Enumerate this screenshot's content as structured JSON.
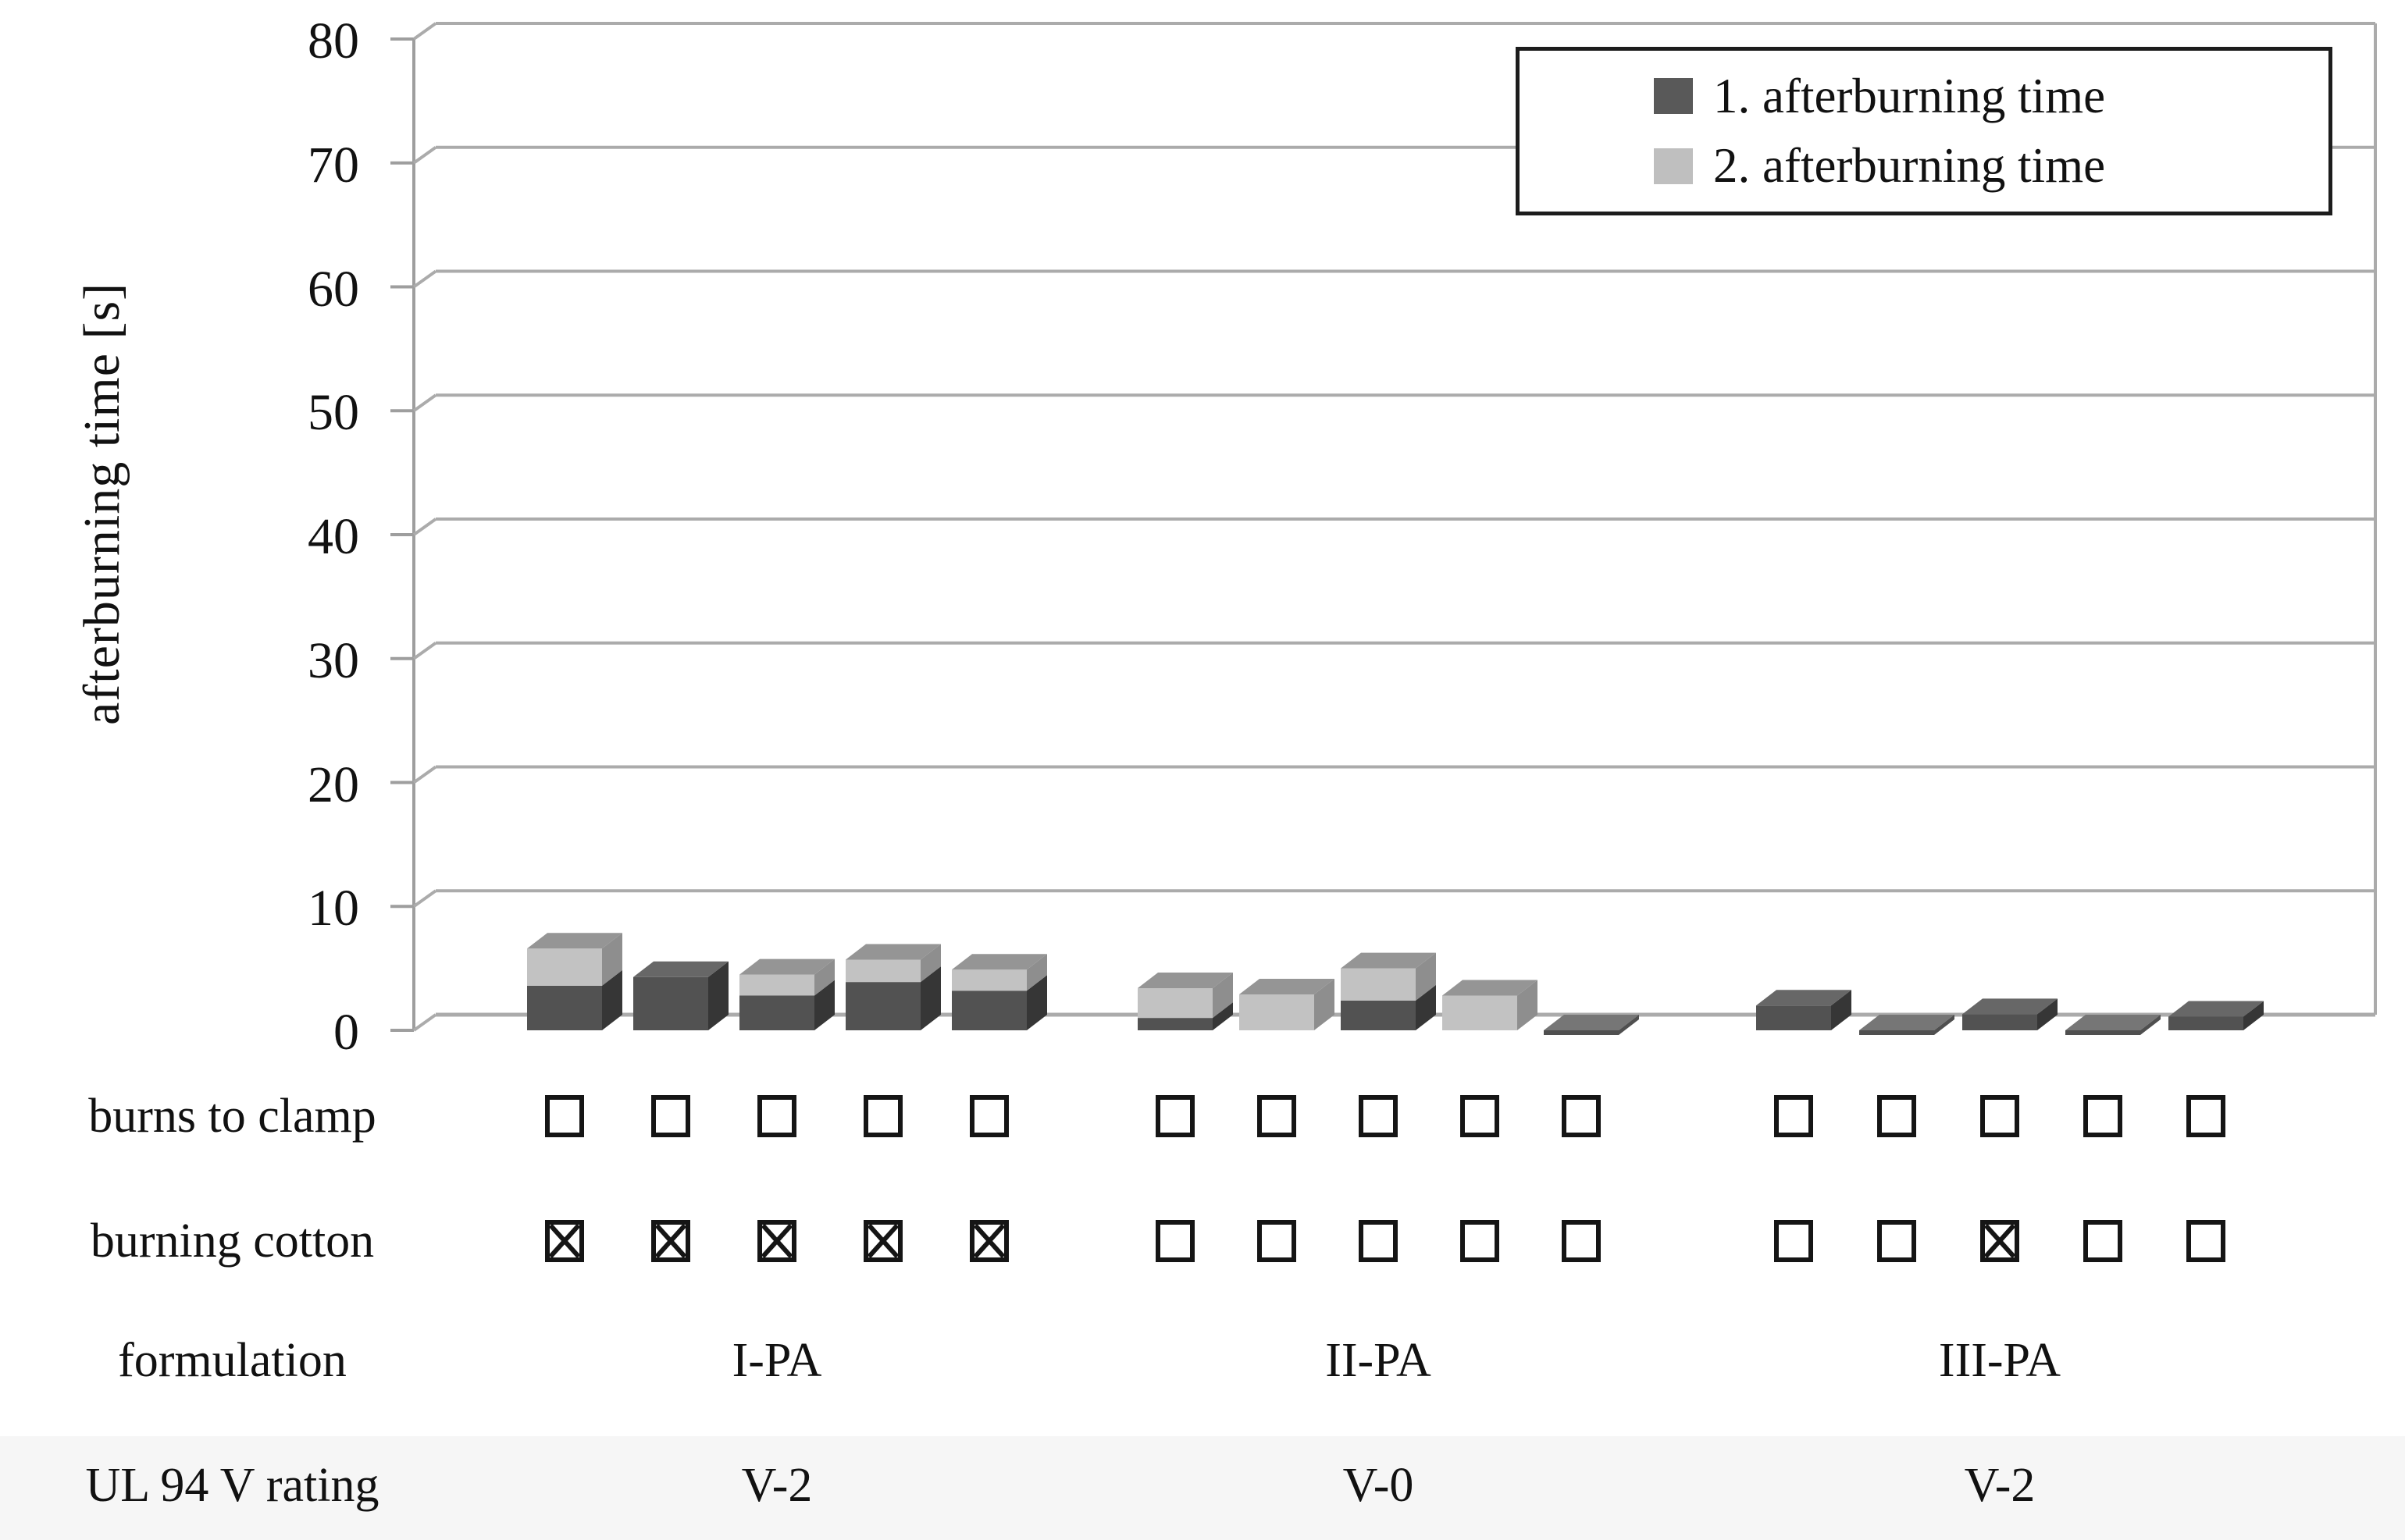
{
  "labels": {
    "burns_to_clamp": "burns to clamp",
    "burning_cotton": "burning cotton",
    "formulation": "formulation",
    "ul94": "UL 94 V rating"
  },
  "colors": {
    "series1_front": "#525252",
    "series1_side": "#363636",
    "series1_top": "#676767",
    "series2_front": "#c2c2c2",
    "series2_side": "#8e8e8e",
    "series2_top": "#959595",
    "zero_bar_top": "#767676",
    "zero_bar_lip": "#4f4f4f",
    "grid": "#ababab",
    "axis": "#9e9e9e",
    "legend_swatch_1": "#595959",
    "legend_swatch_2": "#bfbfbf",
    "checkbox_ink": "#151515"
  },
  "chart_data": {
    "type": "bar",
    "stacked": true,
    "projection": "3d",
    "title": "",
    "ylabel": "afterburning time [s]",
    "xlabel": "",
    "ylim": [
      0,
      80
    ],
    "ytick_step": 10,
    "grid": "horizontal",
    "legend_position": "top-right",
    "groups": [
      "I-PA",
      "II-PA",
      "III-PA"
    ],
    "bars_per_group": 5,
    "series": [
      {
        "name": "1. afterburning time",
        "values": [
          [
            3.6,
            4.3,
            2.8,
            3.9,
            3.2
          ],
          [
            1.0,
            0,
            2.4,
            0,
            0
          ],
          [
            2.0,
            0,
            1.3,
            0,
            1.1
          ]
        ]
      },
      {
        "name": "2. afterburning time",
        "values": [
          [
            3.0,
            0,
            1.7,
            1.8,
            1.7
          ],
          [
            2.4,
            2.9,
            2.6,
            2.8,
            0
          ],
          [
            0,
            0,
            0,
            0,
            0
          ]
        ]
      }
    ],
    "burns_to_clamp": [
      [
        false,
        false,
        false,
        false,
        false
      ],
      [
        false,
        false,
        false,
        false,
        false
      ],
      [
        false,
        false,
        false,
        false,
        false
      ]
    ],
    "burning_cotton": [
      [
        true,
        true,
        true,
        true,
        true
      ],
      [
        false,
        false,
        false,
        false,
        false
      ],
      [
        false,
        false,
        true,
        false,
        false
      ]
    ],
    "ratings": [
      "V-2",
      "V-0",
      "V-2"
    ]
  }
}
